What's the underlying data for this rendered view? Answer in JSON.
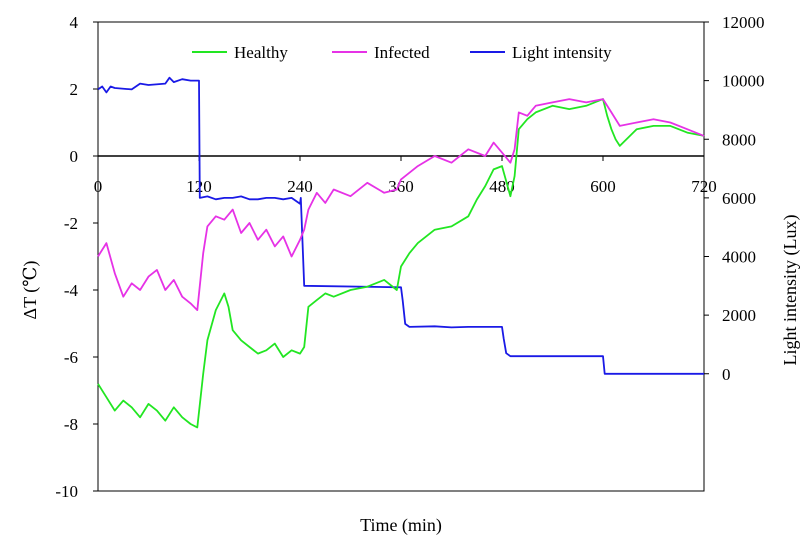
{
  "chart_data": {
    "type": "line",
    "title": "",
    "xlabel": "Time (min)",
    "ylabel_left": "ΔT (℃)",
    "ylabel_right": "Light intensity (Lux)",
    "xlim": [
      0,
      720
    ],
    "ylim_left": [
      -10,
      4
    ],
    "ylim_right": [
      -4000,
      12000
    ],
    "x_ticks": [
      0,
      120,
      240,
      360,
      480,
      600,
      720
    ],
    "x_tick_labels": [
      "0",
      "120",
      "240",
      "360",
      "480",
      "600",
      "720"
    ],
    "y_left_ticks": [
      -10,
      -8,
      -6,
      -4,
      -2,
      0,
      2,
      4
    ],
    "y_left_tick_labels": [
      "-10",
      "-8",
      "-6",
      "-4",
      "-2",
      "0",
      "2",
      "4"
    ],
    "y_right_ticks": [
      0,
      2000,
      4000,
      6000,
      8000,
      10000,
      12000
    ],
    "y_right_tick_labels": [
      "0",
      "2000",
      "4000",
      "6000",
      "8000",
      "10000",
      "12000"
    ],
    "x_axis_at_y": 0,
    "grid": false,
    "legend_position": "top-center",
    "series": [
      {
        "name": "Healthy",
        "axis": "left",
        "color": "#22e622",
        "x": [
          0,
          10,
          20,
          30,
          40,
          50,
          60,
          70,
          80,
          90,
          100,
          110,
          118,
          125,
          130,
          140,
          150,
          155,
          160,
          170,
          180,
          190,
          200,
          210,
          220,
          230,
          240,
          245,
          250,
          260,
          270,
          280,
          300,
          320,
          340,
          355,
          360,
          370,
          380,
          400,
          420,
          440,
          450,
          460,
          470,
          480,
          490,
          495,
          500,
          510,
          520,
          540,
          560,
          580,
          600,
          605,
          610,
          615,
          620,
          640,
          660,
          680,
          700,
          720
        ],
        "y": [
          -6.8,
          -7.2,
          -7.6,
          -7.3,
          -7.5,
          -7.8,
          -7.4,
          -7.6,
          -7.9,
          -7.5,
          -7.8,
          -8.0,
          -8.1,
          -6.5,
          -5.5,
          -4.6,
          -4.1,
          -4.5,
          -5.2,
          -5.5,
          -5.7,
          -5.9,
          -5.8,
          -5.6,
          -6.0,
          -5.8,
          -5.9,
          -5.7,
          -4.5,
          -4.3,
          -4.1,
          -4.2,
          -4.0,
          -3.9,
          -3.7,
          -4.0,
          -3.3,
          -2.9,
          -2.6,
          -2.2,
          -2.1,
          -1.8,
          -1.3,
          -0.9,
          -0.4,
          -0.3,
          -1.2,
          -0.6,
          0.8,
          1.1,
          1.3,
          1.5,
          1.4,
          1.5,
          1.7,
          1.2,
          0.8,
          0.5,
          0.3,
          0.8,
          0.9,
          0.9,
          0.7,
          0.6
        ]
      },
      {
        "name": "Infected",
        "axis": "left",
        "color": "#e632e6",
        "x": [
          0,
          10,
          20,
          30,
          40,
          50,
          60,
          70,
          80,
          90,
          100,
          110,
          118,
          125,
          130,
          140,
          150,
          160,
          170,
          180,
          190,
          200,
          210,
          220,
          230,
          240,
          245,
          250,
          260,
          270,
          280,
          300,
          320,
          340,
          355,
          360,
          380,
          400,
          420,
          440,
          460,
          470,
          480,
          490,
          495,
          500,
          510,
          520,
          540,
          560,
          580,
          600,
          610,
          620,
          640,
          660,
          680,
          700,
          720
        ],
        "y": [
          -3.0,
          -2.6,
          -3.5,
          -4.2,
          -3.8,
          -4.0,
          -3.6,
          -3.4,
          -4.0,
          -3.7,
          -4.2,
          -4.4,
          -4.6,
          -2.9,
          -2.1,
          -1.8,
          -1.9,
          -1.6,
          -2.3,
          -2.0,
          -2.5,
          -2.2,
          -2.7,
          -2.4,
          -3.0,
          -2.5,
          -2.2,
          -1.6,
          -1.1,
          -1.4,
          -1.0,
          -1.2,
          -0.8,
          -1.1,
          -1.0,
          -0.7,
          -0.3,
          0.0,
          -0.2,
          0.2,
          0.0,
          0.4,
          0.1,
          -0.2,
          0.2,
          1.3,
          1.2,
          1.5,
          1.6,
          1.7,
          1.6,
          1.7,
          1.3,
          0.9,
          1.0,
          1.1,
          1.0,
          0.8,
          0.6
        ]
      },
      {
        "name": "Light intensity",
        "axis": "right",
        "color": "#1a1ae6",
        "x": [
          0,
          5,
          10,
          15,
          20,
          40,
          50,
          60,
          80,
          85,
          90,
          100,
          110,
          120,
          121,
          130,
          140,
          150,
          160,
          170,
          180,
          190,
          200,
          210,
          220,
          230,
          240,
          241,
          245,
          360,
          362,
          365,
          370,
          400,
          420,
          440,
          460,
          480,
          482,
          485,
          490,
          520,
          560,
          600,
          602,
          640,
          680,
          720
        ],
        "y": [
          9700,
          9800,
          9600,
          9800,
          9750,
          9700,
          9900,
          9850,
          9900,
          10100,
          9950,
          10050,
          10000,
          10000,
          6000,
          6050,
          5950,
          6000,
          6000,
          6050,
          5950,
          5950,
          6000,
          6000,
          5950,
          6000,
          5800,
          6000,
          3000,
          2950,
          2500,
          1700,
          1600,
          1620,
          1580,
          1600,
          1600,
          1600,
          1200,
          700,
          600,
          600,
          600,
          600,
          0,
          0,
          0,
          0
        ]
      }
    ]
  }
}
